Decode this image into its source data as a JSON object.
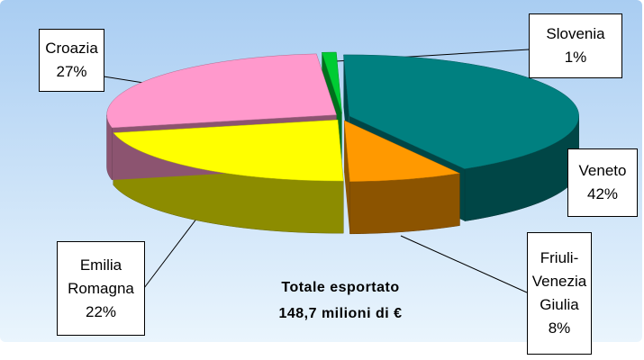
{
  "chart_data": {
    "type": "pie3d",
    "categories": [
      "Slovenia",
      "Veneto",
      "Friuli-Venezia Giulia",
      "Emilia Romagna",
      "Croazia"
    ],
    "values": [
      1,
      42,
      8,
      22,
      27
    ],
    "value_labels": [
      "1%",
      "42%",
      "8%",
      "22%",
      "27%"
    ],
    "colors": [
      "#00cc33",
      "#008080",
      "#ff9900",
      "#ffff00",
      "#ff99cc"
    ],
    "annotations": [
      "Totale esportato",
      "148,7  milioni di €"
    ]
  }
}
